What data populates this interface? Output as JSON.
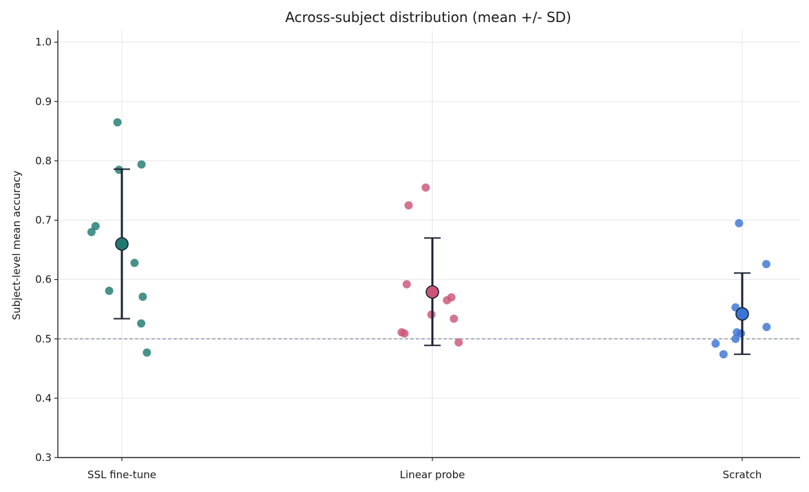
{
  "chart_data": {
    "type": "scatter",
    "title": "Across-subject distribution (mean +/- SD)",
    "xlabel": "",
    "ylabel": "Subject-level mean accuracy",
    "ylim": [
      0.3,
      1.02
    ],
    "yticks": [
      "0.3",
      "0.4",
      "0.5",
      "0.6",
      "0.7",
      "0.8",
      "0.9",
      "1.0"
    ],
    "grid": true,
    "categories": [
      "SSL fine-tune",
      "Linear probe",
      "Scratch"
    ],
    "reference_line": {
      "y": 0.5,
      "style": "dashed",
      "color": "#7a8ca0"
    },
    "series": [
      {
        "category": "SSL fine-tune",
        "color": "#1f7a70",
        "mean": 0.66,
        "sd_low": 0.534,
        "sd_high": 0.786,
        "points": [
          {
            "jitter": -0.14,
            "y": 0.865
          },
          {
            "jitter": -0.09,
            "y": 0.785
          },
          {
            "jitter": 0.62,
            "y": 0.794
          },
          {
            "jitter": -0.83,
            "y": 0.69
          },
          {
            "jitter": -0.96,
            "y": 0.68
          },
          {
            "jitter": 0.4,
            "y": 0.628
          },
          {
            "jitter": -0.4,
            "y": 0.581
          },
          {
            "jitter": 0.66,
            "y": 0.571
          },
          {
            "jitter": 0.61,
            "y": 0.526
          },
          {
            "jitter": 0.79,
            "y": 0.477
          }
        ]
      },
      {
        "category": "Linear probe",
        "color": "#cc5577",
        "mean": 0.579,
        "sd_low": 0.489,
        "sd_high": 0.67,
        "points": [
          {
            "jitter": -0.21,
            "y": 0.755
          },
          {
            "jitter": -0.75,
            "y": 0.725
          },
          {
            "jitter": -0.81,
            "y": 0.592
          },
          {
            "jitter": 0.6,
            "y": 0.57
          },
          {
            "jitter": 0.46,
            "y": 0.565
          },
          {
            "jitter": -0.03,
            "y": 0.541
          },
          {
            "jitter": 0.68,
            "y": 0.534
          },
          {
            "jitter": -0.97,
            "y": 0.511
          },
          {
            "jitter": -0.88,
            "y": 0.509
          },
          {
            "jitter": 0.83,
            "y": 0.494
          }
        ]
      },
      {
        "category": "Scratch",
        "color": "#3b74d6",
        "mean": 0.542,
        "sd_low": 0.474,
        "sd_high": 0.611,
        "points": [
          {
            "jitter": -0.1,
            "y": 0.695
          },
          {
            "jitter": 0.76,
            "y": 0.626
          },
          {
            "jitter": -0.21,
            "y": 0.553
          },
          {
            "jitter": 0.77,
            "y": 0.52
          },
          {
            "jitter": -0.17,
            "y": 0.511
          },
          {
            "jitter": -0.04,
            "y": 0.509
          },
          {
            "jitter": -0.21,
            "y": 0.5
          },
          {
            "jitter": -0.84,
            "y": 0.492
          },
          {
            "jitter": -0.59,
            "y": 0.474
          }
        ]
      }
    ]
  }
}
